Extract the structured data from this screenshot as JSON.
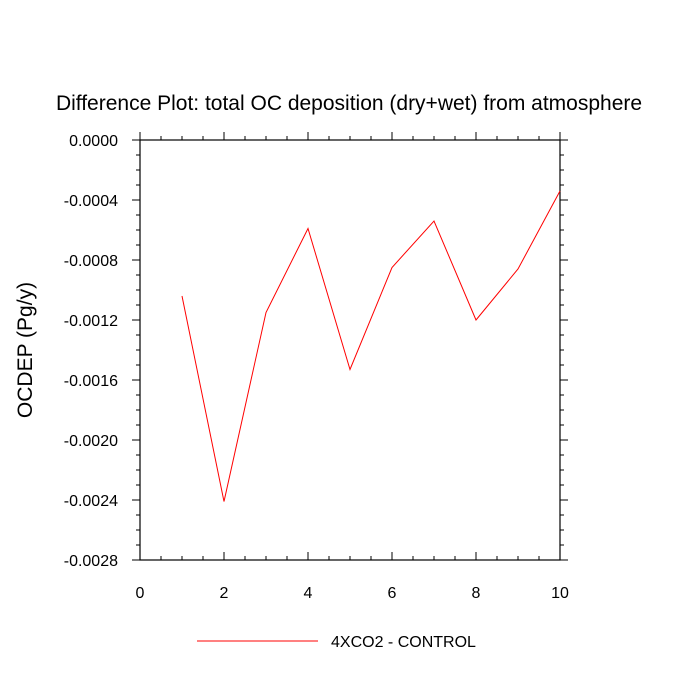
{
  "chart_data": {
    "type": "line",
    "title": "Difference Plot: total OC deposition (dry+wet) from atmosphere",
    "xlabel": "",
    "ylabel": "OCDEP  (Pg/y)",
    "xlim": [
      0,
      10
    ],
    "ylim": [
      -0.0028,
      0.0
    ],
    "x_ticks": [
      0,
      2,
      4,
      6,
      8,
      10
    ],
    "x_tick_labels": [
      "0",
      "2",
      "4",
      "6",
      "8",
      "10"
    ],
    "y_ticks": [
      0.0,
      -0.0004,
      -0.0008,
      -0.0012,
      -0.0016,
      -0.002,
      -0.0024,
      -0.0028
    ],
    "y_tick_labels": [
      "0.0000",
      "-0.0004",
      "-0.0008",
      "-0.0012",
      "-0.0016",
      "-0.0020",
      "-0.0024",
      "-0.0028"
    ],
    "grid": false,
    "legend_position": "bottom",
    "series": [
      {
        "name": "4XCO2 - CONTROL",
        "color": "#ff0000",
        "x": [
          1,
          2,
          3,
          4,
          5,
          6,
          7,
          8,
          9,
          10
        ],
        "y": [
          -0.00104,
          -0.00241,
          -0.00115,
          -0.00059,
          -0.00153,
          -0.00085,
          -0.00054,
          -0.0012,
          -0.00086,
          -0.00034
        ]
      }
    ]
  }
}
